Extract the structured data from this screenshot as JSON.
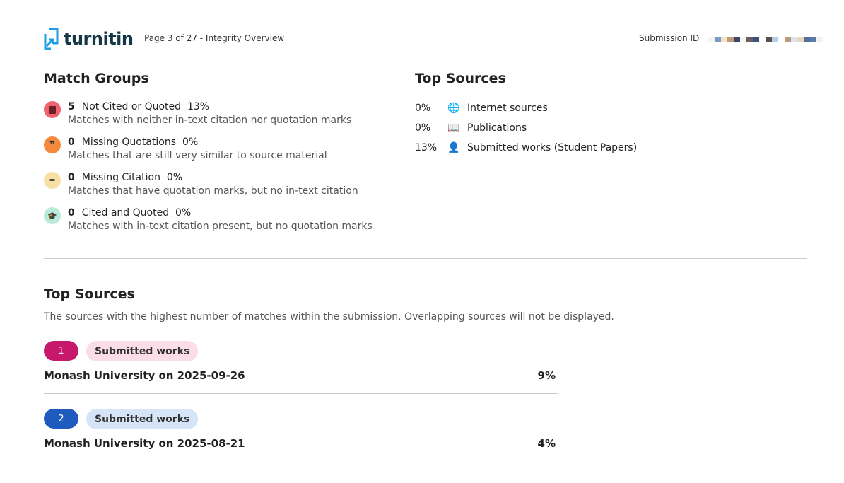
{
  "header": {
    "logo": "turnitin",
    "page_info": "Page 3 of 27 - Integrity Overview",
    "submission_id_label": "Submission ID"
  },
  "match_groups": {
    "title": "Match Groups",
    "items": [
      {
        "count": "5",
        "label": "Not Cited or Quoted",
        "percent": "13%",
        "description": "Matches with neither in-text citation nor quotation marks",
        "icon": "book-icon",
        "color": "#f0616e"
      },
      {
        "count": "0",
        "label": "Missing Quotations",
        "percent": "0%",
        "description": "Matches that are still very similar to source material",
        "icon": "quote-icon",
        "color": "#f68a3c"
      },
      {
        "count": "0",
        "label": "Missing Citation",
        "percent": "0%",
        "description": "Matches that have quotation marks, but no in-text citation",
        "icon": "lines-icon",
        "color": "#f7e0a3"
      },
      {
        "count": "0",
        "label": "Cited and Quoted",
        "percent": "0%",
        "description": "Matches with in-text citation present, but no quotation marks",
        "icon": "graduation-cap-icon",
        "color": "#b9ead9"
      }
    ]
  },
  "top_sources_summary": {
    "title": "Top Sources",
    "items": [
      {
        "percent": "0%",
        "label": "Internet sources",
        "icon": "globe-icon"
      },
      {
        "percent": "0%",
        "label": "Publications",
        "icon": "book-open-icon"
      },
      {
        "percent": "13%",
        "label": "Submitted works (Student Papers)",
        "icon": "person-icon"
      }
    ]
  },
  "top_sources": {
    "title": "Top Sources",
    "description": "The sources with the highest number of matches within the submission. Overlapping sources will not be displayed.",
    "items": [
      {
        "rank": "1",
        "type": "Submitted works",
        "name": "Monash University on 2025-09-26",
        "percent": "9%",
        "rank_color": "#c8186b",
        "type_color": "#fbdde8"
      },
      {
        "rank": "2",
        "type": "Submitted works",
        "name": "Monash University on 2025-08-21",
        "percent": "4%",
        "rank_color": "#1f5bbf",
        "type_color": "#d5e4f7"
      }
    ]
  }
}
